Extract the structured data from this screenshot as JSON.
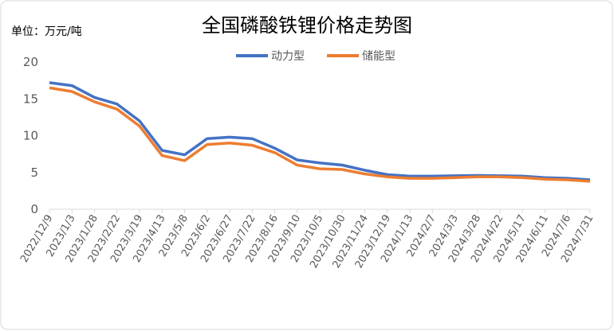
{
  "chart_data": {
    "type": "line",
    "title": "全国磷酸铁锂价格走势图",
    "annotation": "单位：万元/吨",
    "categories": [
      "2022/12/9",
      "2023/1/3",
      "2023/1/28",
      "2023/2/22",
      "2023/3/19",
      "2023/4/13",
      "2023/5/8",
      "2023/6/2",
      "2023/6/27",
      "2023/7/22",
      "2023/8/16",
      "2023/9/10",
      "2023/10/5",
      "2023/10/30",
      "2023/11/24",
      "2023/12/19",
      "2024/1/13",
      "2024/2/7",
      "2024/3/3",
      "2024/3/28",
      "2024/4/22",
      "2024/5/17",
      "2024/6/11",
      "2024/7/6",
      "2024/7/31"
    ],
    "series": [
      {
        "name": "动力型",
        "color": "#4472c4",
        "values": [
          17.2,
          16.8,
          15.2,
          14.3,
          12.0,
          8.0,
          7.4,
          9.6,
          9.8,
          9.6,
          8.3,
          6.7,
          6.3,
          6.0,
          5.3,
          4.7,
          4.5,
          4.5,
          4.55,
          4.6,
          4.55,
          4.5,
          4.3,
          4.2,
          4.0
        ]
      },
      {
        "name": "储能型",
        "color": "#ed7d31",
        "values": [
          16.5,
          16.0,
          14.6,
          13.6,
          11.3,
          7.3,
          6.6,
          8.8,
          9.0,
          8.7,
          7.7,
          6.0,
          5.5,
          5.4,
          4.8,
          4.4,
          4.2,
          4.2,
          4.3,
          4.4,
          4.4,
          4.3,
          4.1,
          4.0,
          3.8
        ]
      }
    ],
    "ylim": [
      0,
      20
    ],
    "yticks": [
      0,
      5,
      10,
      15,
      20
    ],
    "legend": "top"
  }
}
